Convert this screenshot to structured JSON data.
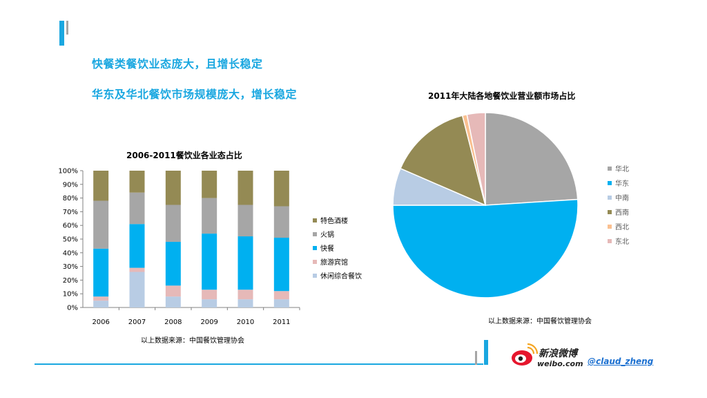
{
  "headlines": {
    "line1": "快餐类餐饮业态庞大，且增长稳定",
    "line2": "华东及华北餐饮市场规模庞大，增长稳定"
  },
  "colors": {
    "accent": "#1aa7e0",
    "gray_bar": "#a6a6a6"
  },
  "chart_data": [
    {
      "type": "bar",
      "stacked": true,
      "title": "2006-2011餐饮业各业态占比",
      "categories": [
        "2006",
        "2007",
        "2008",
        "2009",
        "2010",
        "2011"
      ],
      "y_ticks": [
        "0%",
        "10%",
        "20%",
        "30%",
        "40%",
        "50%",
        "60%",
        "70%",
        "80%",
        "90%",
        "100%"
      ],
      "ylim": [
        0,
        100
      ],
      "legend_position": "right",
      "series": [
        {
          "name": "休闲综合餐饮",
          "color": "#b8cce4",
          "values": [
            5,
            26,
            8,
            6,
            6,
            6
          ]
        },
        {
          "name": "旅游宾馆",
          "color": "#e6b9b8",
          "values": [
            3,
            3,
            8,
            7,
            7,
            6
          ]
        },
        {
          "name": "快餐",
          "color": "#00b0f0",
          "values": [
            35,
            32,
            32,
            41,
            39,
            39
          ]
        },
        {
          "name": "火锅",
          "color": "#a6a6a6",
          "values": [
            35,
            23,
            27,
            26,
            23,
            23
          ]
        },
        {
          "name": "特色酒楼",
          "color": "#948a54",
          "values": [
            22,
            16,
            25,
            20,
            25,
            26
          ]
        }
      ],
      "legend_order": [
        "特色酒楼",
        "火锅",
        "快餐",
        "旅游宾馆",
        "休闲综合餐饮"
      ],
      "source": "以上数据来源：中国餐饮管理协会"
    },
    {
      "type": "pie",
      "title": "2011年大陆各地餐饮业营业额市场占比",
      "legend_position": "right",
      "slices": [
        {
          "name": "华北",
          "color": "#a6a6a6",
          "value": 24
        },
        {
          "name": "华东",
          "color": "#00b0f0",
          "value": 51
        },
        {
          "name": "中南",
          "color": "#b8cce4",
          "value": 6.5
        },
        {
          "name": "西南",
          "color": "#948a54",
          "value": 14.5
        },
        {
          "name": "西北",
          "color": "#fac090",
          "value": 0.8
        },
        {
          "name": "东北",
          "color": "#e6b9b8",
          "value": 3.2
        }
      ],
      "source": "以上数据来源：中国餐饮管理协会"
    }
  ],
  "footer": {
    "logo_cn": "新浪微博",
    "logo_en": "weibo.com",
    "handle": "@claud_zheng"
  }
}
